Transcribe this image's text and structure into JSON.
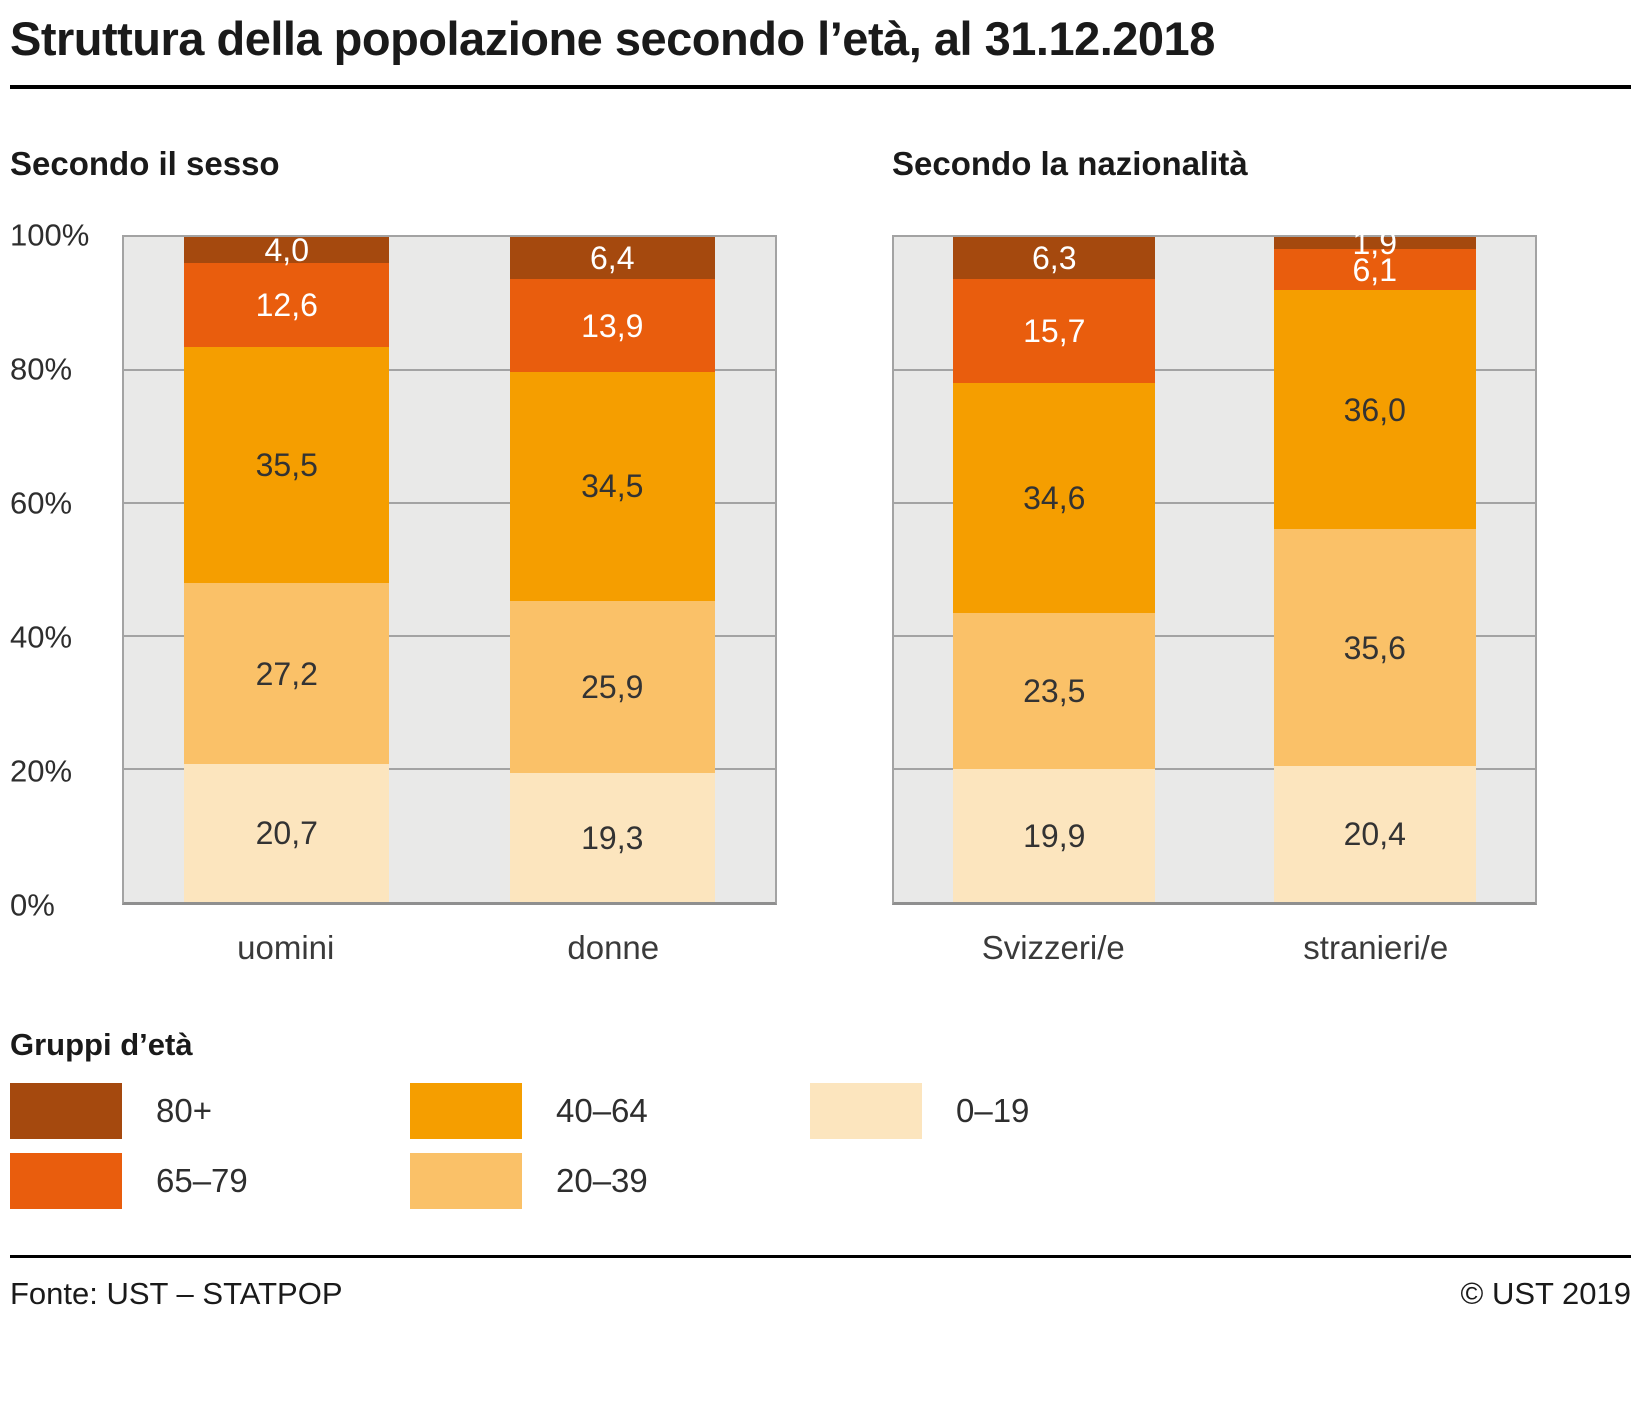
{
  "title": "Struttura della popolazione secondo l’età, al 31.12.2018",
  "chart_data": [
    {
      "type": "bar",
      "stacked": true,
      "title": "Secondo il sesso",
      "categories": [
        "uomini",
        "donne"
      ],
      "series": [
        {
          "name": "80+",
          "values": [
            4.0,
            6.4
          ],
          "color": "#a5490e",
          "label_color": "#ffffff"
        },
        {
          "name": "65–79",
          "values": [
            12.6,
            13.9
          ],
          "color": "#e95d0d",
          "label_color": "#ffffff"
        },
        {
          "name": "40–64",
          "values": [
            35.5,
            34.5
          ],
          "color": "#f59e00",
          "label_color": "#333333"
        },
        {
          "name": "20–39",
          "values": [
            27.2,
            25.9
          ],
          "color": "#fac168",
          "label_color": "#333333"
        },
        {
          "name": "0–19",
          "values": [
            20.7,
            19.3
          ],
          "color": "#fce5be",
          "label_color": "#333333"
        }
      ],
      "ylim": [
        0,
        100
      ],
      "yticks": [
        "0%",
        "20%",
        "40%",
        "60%",
        "80%",
        "100%"
      ],
      "grid": true,
      "legend_position": "bottom"
    },
    {
      "type": "bar",
      "stacked": true,
      "title": "Secondo la nazionalità",
      "categories": [
        "Svizzeri/e",
        "stranieri/e"
      ],
      "series": [
        {
          "name": "80+",
          "values": [
            6.3,
            1.9
          ],
          "color": "#a5490e",
          "label_color": "#ffffff"
        },
        {
          "name": "65–79",
          "values": [
            15.7,
            6.1
          ],
          "color": "#e95d0d",
          "label_color": "#ffffff"
        },
        {
          "name": "40–64",
          "values": [
            34.6,
            36.0
          ],
          "color": "#f59e00",
          "label_color": "#333333"
        },
        {
          "name": "20–39",
          "values": [
            23.5,
            35.6
          ],
          "color": "#fac168",
          "label_color": "#333333"
        },
        {
          "name": "0–19",
          "values": [
            19.9,
            20.4
          ],
          "color": "#fce5be",
          "label_color": "#333333"
        }
      ],
      "ylim": [
        0,
        100
      ],
      "yticks": [],
      "grid": true,
      "legend_position": "bottom"
    }
  ],
  "legend": {
    "title": "Gruppi d’età",
    "items": [
      {
        "label": "80+",
        "color": "#a5490e"
      },
      {
        "label": "65–79",
        "color": "#e95d0d"
      },
      {
        "label": "40–64",
        "color": "#f59e00"
      },
      {
        "label": "20–39",
        "color": "#fac168"
      },
      {
        "label": "0–19",
        "color": "#fce5be"
      }
    ]
  },
  "footer": {
    "source": "Fonte: UST – STATPOP",
    "copyright": "© UST 2019"
  },
  "colors": {
    "plot_background": "#e9e9e8",
    "gridline": "#a3a3a3",
    "rule": "#000000"
  }
}
